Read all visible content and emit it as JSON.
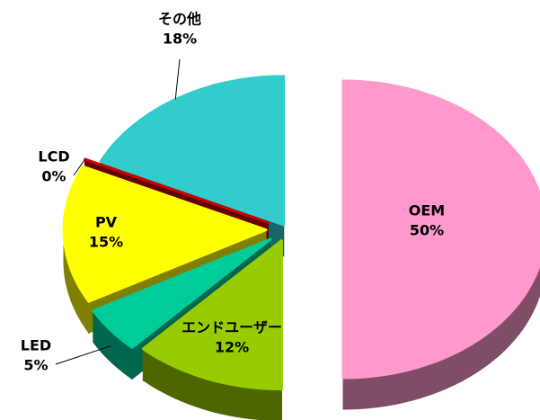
{
  "chart_data": {
    "type": "pie3d",
    "categories": [
      "OEM",
      "エンドユーザー",
      "LED",
      "PV",
      "LCD",
      "その他"
    ],
    "values": [
      50,
      12,
      5,
      15,
      0,
      18
    ],
    "value_labels": [
      "50%",
      "12%",
      "5%",
      "15%",
      "0%",
      "18%"
    ],
    "colors": [
      "#ff99cc",
      "#99cc00",
      "#00cc99",
      "#ffff00",
      "#cc0000",
      "#33cccc"
    ]
  }
}
